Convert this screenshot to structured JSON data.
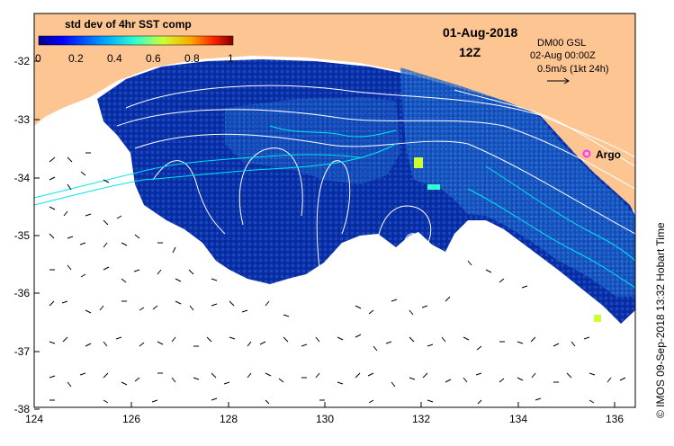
{
  "title": {
    "date": "01-Aug-2018",
    "time": "12Z"
  },
  "model": {
    "name": "DM00 GSL",
    "valid_time": "02-Aug 00:00Z",
    "scale_label": "0.5m/s (1kt 24h)"
  },
  "colorbar": {
    "title": "std dev of 4hr SST comp",
    "ticks": [
      "0",
      "0.2",
      "0.4",
      "0.6",
      "0.8",
      "1"
    ],
    "colors": [
      "#00008f",
      "#0000ff",
      "#00aaff",
      "#33ffcc",
      "#ccff33",
      "#ffaa00",
      "#ff2200",
      "#800000"
    ]
  },
  "argo": {
    "label": "Argo",
    "color": "#ff33ff"
  },
  "credit": "© IMOS 09-Sep-2018 13:32 Hobart Time",
  "axes": {
    "x_ticks": [
      "124",
      "126",
      "128",
      "130",
      "132",
      "134",
      "136"
    ],
    "y_ticks": [
      "-32",
      "-33",
      "-34",
      "-35",
      "-36",
      "-37",
      "-38"
    ]
  },
  "colors": {
    "land": "#fdc592",
    "ocean_dark": "#00008f",
    "ocean_mid": "#0b3fb3",
    "ocean_light": "#2f7fd8",
    "contour": "#ffffff",
    "current": "#00e5ee"
  }
}
